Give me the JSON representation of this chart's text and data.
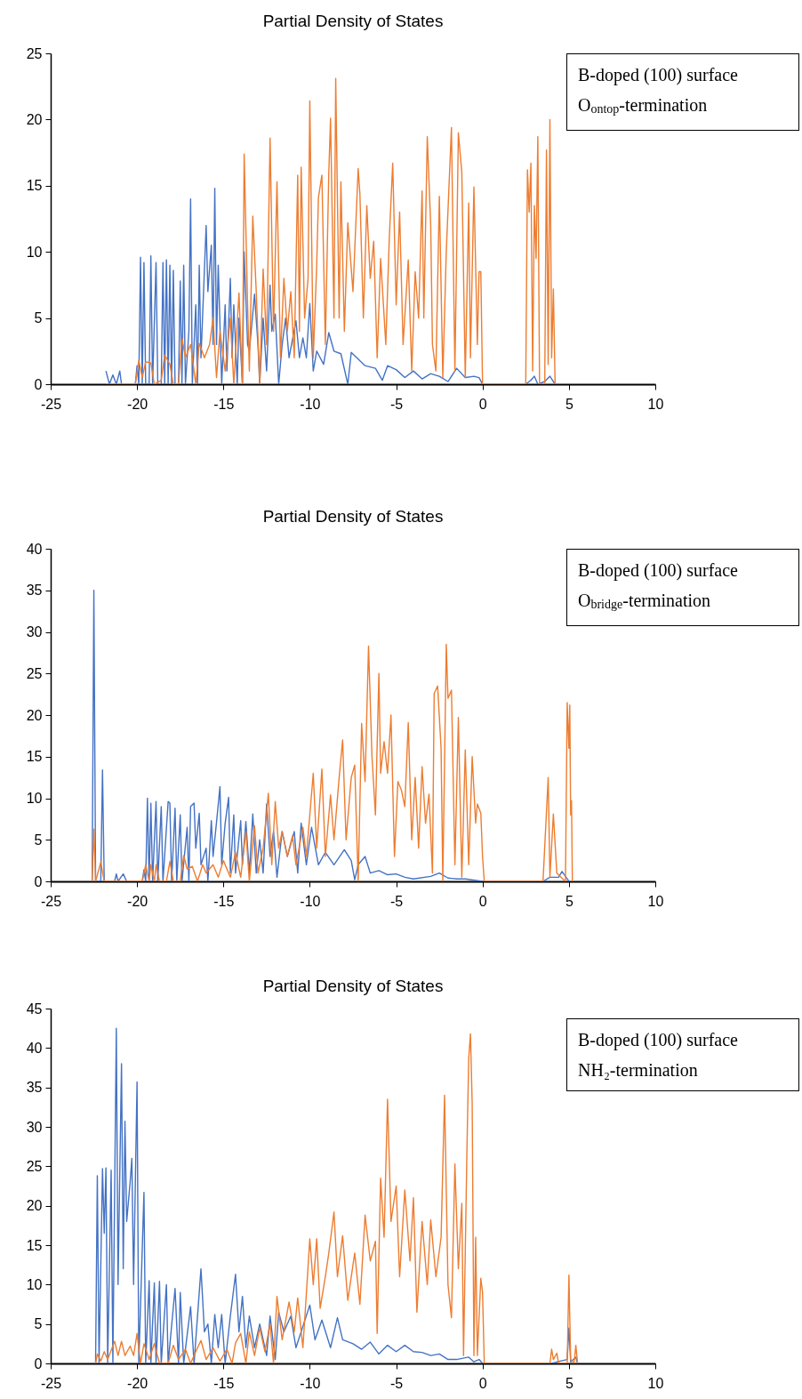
{
  "chart_data": [
    {
      "type": "line",
      "title": "Partial Density of States",
      "annotations": [
        "B-doped (100) surface",
        "O$_{ontop}$-termination"
      ],
      "xlim": [
        -25,
        10
      ],
      "xticks": [
        -25,
        -20,
        -15,
        -10,
        -5,
        0,
        5,
        10
      ],
      "ylim": [
        0,
        25
      ],
      "yticks": [
        0,
        5,
        10,
        15,
        20,
        25
      ],
      "grid": false,
      "series": [
        {
          "color": "#4472c4",
          "x": [
            -21.8,
            -21.6,
            -21.4,
            -21.2,
            -21.0,
            -20.9,
            -20.1,
            -20.0,
            -19.9,
            -19.8,
            -19.7,
            -19.6,
            -19.5,
            -19.3,
            -19.2,
            -19.1,
            -18.9,
            -18.8,
            -18.6,
            -18.5,
            -18.4,
            -18.3,
            -18.2,
            -18.1,
            -18.0,
            -17.9,
            -17.8,
            -17.6,
            -17.5,
            -17.4,
            -17.3,
            -17.2,
            -17.0,
            -16.9,
            -16.8,
            -16.6,
            -16.5,
            -16.4,
            -16.3,
            -16.0,
            -15.9,
            -15.7,
            -15.6,
            -15.5,
            -15.4,
            -15.3,
            -15.1,
            -14.9,
            -14.8,
            -14.6,
            -14.5,
            -14.4,
            -14.2,
            -14.1,
            -13.9,
            -13.8,
            -13.6,
            -13.5,
            -13.2,
            -13.0,
            -12.9,
            -12.7,
            -12.5,
            -12.3,
            -12.2,
            -12.0,
            -11.8,
            -11.6,
            -11.4,
            -11.2,
            -10.8,
            -10.6,
            -10.4,
            -10.2,
            -10.0,
            -9.8,
            -9.6,
            -9.2,
            -8.9,
            -8.6,
            -8.2,
            -7.8,
            -7.6,
            -7.2,
            -6.8,
            -6.2,
            -5.8,
            -5.5,
            -5.0,
            -4.5,
            -4.0,
            -3.5,
            -3.0,
            -2.5,
            -2.0,
            -1.5,
            -1.0,
            -0.5,
            -0.2,
            0.0,
            2.5,
            2.8,
            3.0,
            3.2,
            3.6,
            3.9,
            4.2
          ],
          "values": [
            1,
            0,
            0.7,
            0,
            1,
            0,
            0,
            1.4,
            0,
            9.6,
            0,
            9.2,
            0,
            0,
            9.7,
            0,
            9.2,
            0,
            0,
            9.2,
            0,
            9.4,
            0,
            9,
            0,
            8.6,
            0,
            0,
            7.8,
            0,
            9,
            0,
            4,
            14,
            0,
            6,
            0,
            9,
            2,
            12,
            7,
            10.5,
            3,
            14.8,
            3,
            9,
            0,
            6,
            1,
            8,
            2,
            6,
            0,
            5,
            0,
            10,
            3,
            2.5,
            6.8,
            3,
            0,
            5,
            1,
            7.5,
            4,
            5.3,
            0,
            3,
            5,
            2,
            4.8,
            2,
            3.5,
            2,
            6.1,
            1,
            2.5,
            1.5,
            3.9,
            2.5,
            2.3,
            0,
            2.4,
            1.9,
            1.4,
            1.2,
            0.3,
            1.4,
            1.1,
            0.5,
            1,
            0.4,
            0.8,
            0.6,
            0.2,
            1.2,
            0.5,
            0.6,
            0.5,
            0,
            0,
            0.3,
            0.6,
            0,
            0.2,
            0.6,
            0
          ]
        },
        {
          "color": "#ed7d31",
          "x": [
            -21.8,
            -20.1,
            -19.9,
            -19.7,
            -19.5,
            -19.2,
            -19.0,
            -18.6,
            -18.4,
            -18.1,
            -17.9,
            -17.6,
            -17.4,
            -17.2,
            -16.9,
            -16.6,
            -16.4,
            -16.1,
            -15.8,
            -15.6,
            -15.4,
            -15.2,
            -14.9,
            -14.6,
            -14.4,
            -14.1,
            -13.9,
            -13.8,
            -13.6,
            -13.5,
            -13.3,
            -13.1,
            -12.9,
            -12.7,
            -12.5,
            -12.3,
            -12.1,
            -11.9,
            -11.7,
            -11.5,
            -11.3,
            -11.1,
            -10.9,
            -10.7,
            -10.6,
            -10.5,
            -10.3,
            -10.1,
            -10.0,
            -9.8,
            -9.6,
            -9.5,
            -9.3,
            -9.1,
            -8.9,
            -8.8,
            -8.6,
            -8.5,
            -8.3,
            -8.2,
            -8.0,
            -7.8,
            -7.5,
            -7.2,
            -7.1,
            -6.9,
            -6.7,
            -6.5,
            -6.3,
            -6.1,
            -5.9,
            -5.6,
            -5.4,
            -5.2,
            -5.0,
            -4.8,
            -4.6,
            -4.3,
            -4.1,
            -3.9,
            -3.7,
            -3.5,
            -3.4,
            -3.2,
            -3.0,
            -2.9,
            -2.7,
            -2.5,
            -2.3,
            -2.1,
            -1.8,
            -1.6,
            -1.4,
            -1.2,
            -1.0,
            -0.8,
            -0.7,
            -0.5,
            -0.3,
            -0.2,
            -0.1,
            0.0,
            2.5,
            2.6,
            2.7,
            2.8,
            2.9,
            3.0,
            3.1,
            3.2,
            3.3,
            3.6,
            3.7,
            3.8,
            3.9,
            4.0,
            4.1,
            4.2
          ],
          "values": [
            0,
            0,
            1.8,
            0.5,
            1.7,
            1.6,
            0,
            0.3,
            2.2,
            1.5,
            0,
            0,
            3.5,
            2,
            3,
            0,
            3.1,
            2,
            3,
            5,
            0.5,
            4,
            1,
            5,
            0,
            6.9,
            0,
            17.4,
            6,
            1,
            12.7,
            7,
            0,
            8.7,
            3,
            18.6,
            4,
            15.3,
            2,
            8,
            4,
            7,
            2,
            15.8,
            4,
            16.4,
            5,
            8,
            21.4,
            2,
            9,
            14.1,
            15.8,
            3,
            16,
            20.1,
            5,
            23.1,
            5,
            15.3,
            4,
            12.2,
            7,
            16.3,
            14.4,
            5,
            13.5,
            8,
            10.8,
            2,
            9.5,
            3,
            11,
            16.7,
            6,
            13,
            3,
            9.4,
            1,
            8.5,
            5,
            14.6,
            5,
            18.7,
            12,
            3,
            1,
            14.2,
            0.5,
            10,
            19.4,
            1,
            19,
            16,
            0.5,
            13.7,
            2,
            14.9,
            3,
            8.5,
            8.5,
            0,
            0,
            16.2,
            13,
            16.7,
            1,
            13.5,
            9.5,
            18.7,
            0,
            0,
            17.7,
            1.5,
            20,
            2,
            7.2,
            0
          ]
        }
      ]
    },
    {
      "type": "line",
      "title": "Partial Density of States",
      "annotations": [
        "B-doped (100) surface",
        "O$_{bridge}$-termination"
      ],
      "xlim": [
        -25,
        10
      ],
      "xticks": [
        -25,
        -20,
        -15,
        -10,
        -5,
        0,
        5,
        10
      ],
      "ylim": [
        0,
        40
      ],
      "yticks": [
        0,
        5,
        10,
        15,
        20,
        25,
        30,
        35,
        40
      ],
      "grid": false,
      "series": [
        {
          "color": "#4472c4",
          "x": [
            -22.6,
            -22.5,
            -22.4,
            -22.1,
            -22.0,
            -21.9,
            -21.3,
            -21.2,
            -21.1,
            -20.8,
            -20.6,
            -19.7,
            -19.6,
            -19.5,
            -19.4,
            -19.3,
            -19.2,
            -19.1,
            -18.9,
            -18.8,
            -18.6,
            -18.5,
            -18.2,
            -18.1,
            -18.0,
            -17.8,
            -17.7,
            -17.5,
            -17.4,
            -17.1,
            -17.0,
            -16.9,
            -16.7,
            -16.6,
            -16.4,
            -16.3,
            -16.0,
            -15.9,
            -15.7,
            -15.6,
            -15.4,
            -15.2,
            -15.1,
            -14.9,
            -14.7,
            -14.6,
            -14.4,
            -14.3,
            -14.0,
            -13.9,
            -13.7,
            -13.5,
            -13.3,
            -13.1,
            -12.9,
            -12.7,
            -12.5,
            -12.3,
            -12.1,
            -11.9,
            -11.6,
            -11.3,
            -10.9,
            -10.7,
            -10.5,
            -10.2,
            -9.9,
            -9.5,
            -9.1,
            -8.6,
            -8.0,
            -7.6,
            -7.4,
            -7.2,
            -6.8,
            -6.5,
            -6.0,
            -5.5,
            -5.0,
            -4.5,
            -4.0,
            -3.0,
            -2.5,
            -2.0,
            -1.5,
            -1.0,
            0.0,
            3.5,
            3.9,
            4.4,
            4.6,
            4.9,
            5.0
          ],
          "values": [
            0,
            35,
            0,
            0,
            13.4,
            0,
            0,
            0.9,
            0,
            0.9,
            0,
            0,
            1.4,
            0,
            10,
            0,
            9.4,
            0,
            9.6,
            0,
            9,
            0,
            9.6,
            9.4,
            0,
            8.8,
            0,
            8,
            0,
            6.5,
            0,
            9,
            9.4,
            4,
            8.2,
            2,
            4,
            0,
            7.3,
            3,
            7.1,
            11.4,
            2,
            7,
            10.1,
            1,
            8,
            1,
            7.3,
            2,
            7.2,
            1,
            8.1,
            1,
            5,
            1,
            9.3,
            3,
            6,
            0.5,
            6,
            3,
            6,
            1,
            7,
            2,
            6.5,
            2,
            3.5,
            2,
            3.8,
            2.5,
            0.2,
            2,
            3,
            1,
            1.3,
            0.8,
            0.9,
            0.5,
            0.3,
            0.6,
            1,
            0.4,
            0.3,
            0.3,
            0,
            0,
            0.5,
            0.5,
            1.2,
            0.3,
            0
          ]
        },
        {
          "color": "#ed7d31",
          "x": [
            -22.6,
            -22.5,
            -22.4,
            -22.1,
            -21.9,
            -19.7,
            -19.5,
            -19.3,
            -19.2,
            -19.0,
            -18.9,
            -18.7,
            -18.3,
            -18.1,
            -17.9,
            -17.5,
            -17.3,
            -17.1,
            -16.8,
            -16.5,
            -16.2,
            -16.0,
            -15.6,
            -15.3,
            -15.0,
            -14.6,
            -14.3,
            -14.0,
            -13.7,
            -13.5,
            -13.2,
            -13.0,
            -12.7,
            -12.4,
            -12.2,
            -12.0,
            -11.8,
            -11.6,
            -11.3,
            -11.0,
            -10.8,
            -10.4,
            -10.2,
            -9.8,
            -9.6,
            -9.3,
            -9.1,
            -8.8,
            -8.6,
            -8.3,
            -8.1,
            -7.9,
            -7.6,
            -7.4,
            -7.2,
            -7.0,
            -6.8,
            -6.6,
            -6.4,
            -6.2,
            -6.0,
            -5.9,
            -5.7,
            -5.5,
            -5.3,
            -5.1,
            -4.9,
            -4.7,
            -4.5,
            -4.3,
            -4.1,
            -3.9,
            -3.7,
            -3.5,
            -3.3,
            -3.1,
            -2.9,
            -2.8,
            -2.6,
            -2.4,
            -2.3,
            -2.1,
            -2.0,
            -1.8,
            -1.6,
            -1.4,
            -1.2,
            -1.0,
            -0.8,
            -0.6,
            -0.4,
            -0.3,
            -0.1,
            0.0,
            0.1,
            3.5,
            3.8,
            3.9,
            4.1,
            4.3,
            4.8,
            4.9,
            5.0,
            5.05,
            5.1,
            5.15,
            5.2
          ],
          "values": [
            0,
            6.3,
            0,
            2.3,
            0,
            0,
            2,
            0,
            2,
            0,
            2,
            0,
            0,
            2.4,
            0,
            0,
            3.1,
            1.5,
            1.8,
            0,
            2,
            1,
            2,
            0.5,
            2.5,
            0.5,
            3.5,
            0.5,
            6,
            0,
            6.7,
            1,
            4,
            10.6,
            2,
            9.6,
            4,
            6,
            3,
            5.5,
            2,
            6.5,
            3,
            13,
            4,
            13.5,
            3,
            10.4,
            5,
            12.5,
            17,
            5,
            12.5,
            14,
            0,
            19,
            12,
            28.3,
            15,
            8,
            25,
            13,
            16.8,
            13,
            20,
            3,
            12,
            11,
            9,
            19.1,
            5,
            12.5,
            4,
            13.8,
            7,
            10.5,
            1,
            22.6,
            23.5,
            16,
            0,
            28.5,
            22,
            23,
            2,
            19.7,
            0.5,
            15.8,
            2,
            15,
            7,
            9.3,
            8.2,
            3,
            0,
            0,
            12.5,
            0.5,
            8.1,
            1,
            0,
            21.5,
            16,
            21.2,
            8,
            9.7,
            0
          ]
        }
      ]
    },
    {
      "type": "line",
      "title": "Partial Density of States",
      "annotations": [
        "B-doped (100) surface",
        "NH₂-termination"
      ],
      "xlim": [
        -25,
        10
      ],
      "xticks": [
        -25,
        -20,
        -15,
        -10,
        -5,
        0,
        5,
        10
      ],
      "ylim": [
        0,
        45
      ],
      "yticks": [
        0,
        5,
        10,
        15,
        20,
        25,
        30,
        35,
        40,
        45
      ],
      "grid": false,
      "series": [
        {
          "color": "#4472c4",
          "x": [
            -22.4,
            -22.3,
            -22.2,
            -22.0,
            -21.9,
            -21.8,
            -21.7,
            -21.5,
            -21.4,
            -21.2,
            -21.1,
            -20.9,
            -20.8,
            -20.7,
            -20.6,
            -20.4,
            -20.3,
            -20.2,
            -20.0,
            -19.9,
            -19.6,
            -19.5,
            -19.3,
            -19.2,
            -19.0,
            -18.9,
            -18.7,
            -18.6,
            -18.3,
            -18.2,
            -17.8,
            -17.6,
            -17.5,
            -17.3,
            -16.9,
            -16.7,
            -16.3,
            -16.1,
            -15.9,
            -15.7,
            -15.5,
            -15.3,
            -15.1,
            -14.9,
            -14.6,
            -14.3,
            -14.1,
            -13.9,
            -13.7,
            -13.5,
            -13.2,
            -12.9,
            -12.5,
            -12.3,
            -12.0,
            -11.8,
            -11.5,
            -11.1,
            -10.8,
            -10.0,
            -9.7,
            -9.3,
            -8.8,
            -8.4,
            -8.1,
            -7.5,
            -7.0,
            -6.5,
            -6.0,
            -5.5,
            -5.0,
            -4.5,
            -4.0,
            -3.5,
            -3.0,
            -2.5,
            -2.0,
            -1.5,
            -0.8,
            -0.5,
            -0.2,
            0.0,
            4.0,
            4.5,
            4.9,
            5.0,
            5.1,
            5.4,
            5.5
          ],
          "values": [
            0,
            23.8,
            0,
            24.7,
            16.5,
            24.8,
            0,
            24.5,
            0,
            42.5,
            10,
            38,
            12,
            30.7,
            18,
            23,
            26,
            10,
            35.7,
            0,
            21.7,
            0,
            10.5,
            0,
            10.2,
            0,
            10.4,
            0,
            10,
            0,
            9.5,
            0,
            9,
            0,
            7.2,
            0,
            12,
            4,
            5,
            0,
            6.2,
            2,
            6.2,
            0,
            6,
            11.3,
            4,
            8.5,
            2,
            6,
            2,
            5,
            1,
            6,
            0.5,
            6.5,
            4,
            6,
            2,
            7.4,
            3,
            5.5,
            2,
            5.8,
            3,
            2.5,
            1.8,
            2.7,
            1.2,
            2.3,
            1.5,
            2.3,
            1.5,
            1.4,
            1,
            1.2,
            0.5,
            0.5,
            0.8,
            0.2,
            0.5,
            0,
            0,
            0.3,
            0.5,
            4.5,
            0.2,
            0.8,
            0
          ]
        },
        {
          "color": "#ed7d31",
          "x": [
            -22.4,
            -22.3,
            -22.1,
            -21.9,
            -21.7,
            -21.3,
            -21.1,
            -20.9,
            -20.7,
            -20.4,
            -20.2,
            -20.0,
            -19.8,
            -19.6,
            -19.3,
            -19.0,
            -18.7,
            -18.2,
            -17.9,
            -17.6,
            -17.2,
            -16.9,
            -16.6,
            -16.3,
            -16.0,
            -15.6,
            -15.2,
            -14.8,
            -14.5,
            -14.3,
            -14.0,
            -13.7,
            -13.5,
            -13.2,
            -12.9,
            -12.6,
            -12.3,
            -12.1,
            -11.9,
            -11.6,
            -11.2,
            -10.9,
            -10.7,
            -10.4,
            -10.2,
            -10.0,
            -9.8,
            -9.6,
            -9.4,
            -9.1,
            -8.9,
            -8.6,
            -8.4,
            -8.1,
            -7.8,
            -7.4,
            -7.1,
            -6.8,
            -6.5,
            -6.2,
            -6.1,
            -5.9,
            -5.7,
            -5.5,
            -5.3,
            -5.0,
            -4.8,
            -4.5,
            -4.2,
            -4.0,
            -3.8,
            -3.5,
            -3.2,
            -3.0,
            -2.7,
            -2.4,
            -2.2,
            -2.0,
            -1.8,
            -1.6,
            -1.4,
            -1.2,
            -1.1,
            -0.9,
            -0.8,
            -0.7,
            -0.6,
            -0.5,
            -0.4,
            -0.3,
            -0.1,
            0.0,
            0.1,
            3.9,
            4.0,
            4.1,
            4.3,
            4.4,
            4.9,
            5.0,
            5.1,
            5.3,
            5.4,
            5.5
          ],
          "values": [
            0,
            1.2,
            0.3,
            1.5,
            0.5,
            2.8,
            1,
            2.8,
            1,
            2.2,
            1,
            3.8,
            0,
            2.5,
            0.5,
            2.5,
            0,
            0,
            2.3,
            0.5,
            1.8,
            0,
            1.5,
            2.9,
            0.5,
            2,
            0.3,
            1.8,
            0,
            2.6,
            3.8,
            0,
            4,
            1,
            4.5,
            1.5,
            5,
            0,
            8.5,
            3,
            7.8,
            4,
            8.3,
            2,
            8.8,
            15.8,
            10,
            15.8,
            7,
            11,
            14,
            19.2,
            11,
            16.2,
            8,
            14,
            7.5,
            18.8,
            13,
            15.5,
            3.8,
            23.5,
            16,
            33.5,
            18,
            22.5,
            11,
            22,
            13,
            21,
            6.5,
            18,
            10,
            18.2,
            11,
            16,
            34,
            10,
            5.8,
            25.3,
            12,
            20.3,
            1,
            27.5,
            38.7,
            41.8,
            33,
            1,
            16,
            1,
            10.8,
            9,
            0,
            0,
            1.8,
            0.5,
            1.3,
            0,
            0,
            11.2,
            0.5,
            0,
            2.3,
            0
          ]
        }
      ]
    }
  ]
}
